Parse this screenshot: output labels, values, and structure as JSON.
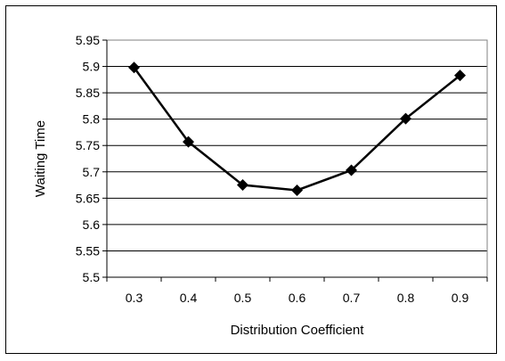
{
  "chart_data": {
    "type": "line",
    "title": "",
    "xlabel": "Distribution Coefficient",
    "ylabel": "Waiting Time",
    "x": [
      0.3,
      0.4,
      0.5,
      0.6,
      0.7,
      0.8,
      0.9
    ],
    "x_tick_labels": [
      "0.3",
      "0.4",
      "0.5",
      "0.6",
      "0.7",
      "0.8",
      "0.9"
    ],
    "series": [
      {
        "values": [
          5.898,
          5.757,
          5.675,
          5.665,
          5.703,
          5.801,
          5.883
        ]
      }
    ],
    "ylim": [
      5.5,
      5.95
    ],
    "y_ticks": [
      5.5,
      5.55,
      5.6,
      5.65,
      5.7,
      5.75,
      5.8,
      5.85,
      5.9,
      5.95
    ],
    "y_tick_labels": [
      "5.5",
      "5.55",
      "5.6",
      "5.65",
      "5.7",
      "5.75",
      "5.8",
      "5.85",
      "5.9",
      "5.95"
    ],
    "grid": "horizontal",
    "legend": "none",
    "marker": "diamond",
    "colors": {
      "line": "#000000",
      "marker": "#000000",
      "grid": "#000000",
      "plot_border": "#808080"
    }
  }
}
